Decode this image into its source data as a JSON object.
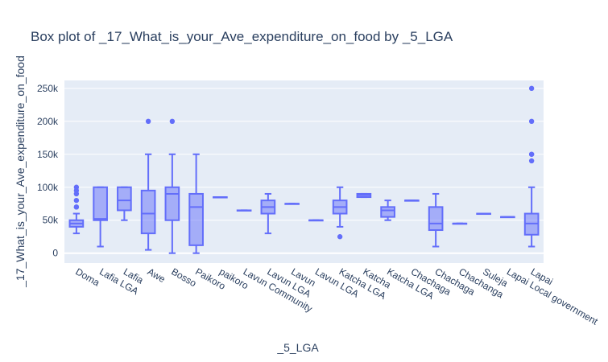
{
  "chart_data": {
    "type": "box",
    "title": "Box plot of _17_What_is_your_Ave_expenditure_on_food by _5_LGA",
    "xlabel": "_5_LGA",
    "ylabel": "_17_What_is_your_Ave_expenditure_on_food",
    "ylim": [
      -15000,
      262000
    ],
    "yticks": [
      0,
      50000,
      100000,
      150000,
      200000,
      250000
    ],
    "ytick_labels": [
      "0",
      "50k",
      "100k",
      "150k",
      "200k",
      "250k"
    ],
    "grid": true,
    "colors": {
      "box": "#636efa",
      "plot_bg": "#e5ecf6",
      "grid": "#ffffff",
      "text": "#2a3f5f"
    },
    "categories": [
      "Doma",
      "Lafia LGA",
      "Lafia",
      "Awe",
      "Bosso",
      "Paikoro",
      "paikoro",
      "Lavun Community",
      "Lavun LGA",
      "Lavun",
      "Lavun LGA ",
      "Katcha LGA",
      "Katcha",
      "Katcha LGA ",
      "Chachaga",
      "Chachaga ",
      "Chachanga",
      "Suleja",
      "Lapai Local government",
      "Lapai"
    ],
    "boxes": [
      {
        "category": "Doma",
        "lower_fence": 30000,
        "q1": 40000,
        "median": 45000,
        "q3": 50000,
        "upper_fence": 60000,
        "outliers": [
          70000,
          70000,
          80000,
          90000,
          95000,
          100000
        ]
      },
      {
        "category": "Lafia LGA",
        "lower_fence": 10000,
        "q1": 50000,
        "median": 52000,
        "q3": 100000,
        "upper_fence": 100000,
        "outliers": []
      },
      {
        "category": "Lafia",
        "lower_fence": 50000,
        "q1": 65000,
        "median": 80000,
        "q3": 100000,
        "upper_fence": 100000,
        "outliers": []
      },
      {
        "category": "Awe",
        "lower_fence": 5000,
        "q1": 30000,
        "median": 60000,
        "q3": 95000,
        "upper_fence": 150000,
        "outliers": [
          200000
        ]
      },
      {
        "category": "Bosso",
        "lower_fence": 0,
        "q1": 50000,
        "median": 90000,
        "q3": 100000,
        "upper_fence": 150000,
        "outliers": [
          200000
        ]
      },
      {
        "category": "Paikoro",
        "lower_fence": 0,
        "q1": 12000,
        "median": 70000,
        "q3": 90000,
        "upper_fence": 150000,
        "outliers": []
      },
      {
        "category": "paikoro",
        "lower_fence": 85000,
        "q1": 85000,
        "median": 85000,
        "q3": 85000,
        "upper_fence": 85000,
        "outliers": []
      },
      {
        "category": "Lavun Community",
        "lower_fence": 65000,
        "q1": 65000,
        "median": 65000,
        "q3": 65000,
        "upper_fence": 65000,
        "outliers": []
      },
      {
        "category": "Lavun LGA",
        "lower_fence": 30000,
        "q1": 60000,
        "median": 70000,
        "q3": 80000,
        "upper_fence": 90000,
        "outliers": []
      },
      {
        "category": "Lavun",
        "lower_fence": 75000,
        "q1": 75000,
        "median": 75000,
        "q3": 75000,
        "upper_fence": 75000,
        "outliers": []
      },
      {
        "category": "Lavun LGA ",
        "lower_fence": 50000,
        "q1": 50000,
        "median": 50000,
        "q3": 50000,
        "upper_fence": 50000,
        "outliers": []
      },
      {
        "category": "Katcha LGA",
        "lower_fence": 40000,
        "q1": 60000,
        "median": 70000,
        "q3": 80000,
        "upper_fence": 100000,
        "outliers": [
          25000
        ]
      },
      {
        "category": "Katcha",
        "lower_fence": 85000,
        "q1": 85000,
        "median": 88000,
        "q3": 90000,
        "upper_fence": 90000,
        "outliers": []
      },
      {
        "category": "Katcha LGA ",
        "lower_fence": 50000,
        "q1": 55000,
        "median": 65000,
        "q3": 70000,
        "upper_fence": 80000,
        "outliers": []
      },
      {
        "category": "Chachaga",
        "lower_fence": 80000,
        "q1": 80000,
        "median": 80000,
        "q3": 80000,
        "upper_fence": 80000,
        "outliers": []
      },
      {
        "category": "Chachaga ",
        "lower_fence": 10000,
        "q1": 35000,
        "median": 45000,
        "q3": 70000,
        "upper_fence": 90000,
        "outliers": []
      },
      {
        "category": "Chachanga",
        "lower_fence": 45000,
        "q1": 45000,
        "median": 45000,
        "q3": 45000,
        "upper_fence": 45000,
        "outliers": []
      },
      {
        "category": "Suleja",
        "lower_fence": 60000,
        "q1": 60000,
        "median": 60000,
        "q3": 60000,
        "upper_fence": 60000,
        "outliers": []
      },
      {
        "category": "Lapai Local government",
        "lower_fence": 55000,
        "q1": 55000,
        "median": 55000,
        "q3": 55000,
        "upper_fence": 55000,
        "outliers": []
      },
      {
        "category": "Lapai",
        "lower_fence": 10000,
        "q1": 28000,
        "median": 45000,
        "q3": 60000,
        "upper_fence": 100000,
        "outliers": [
          140000,
          150000,
          150000,
          200000,
          250000
        ]
      }
    ]
  }
}
